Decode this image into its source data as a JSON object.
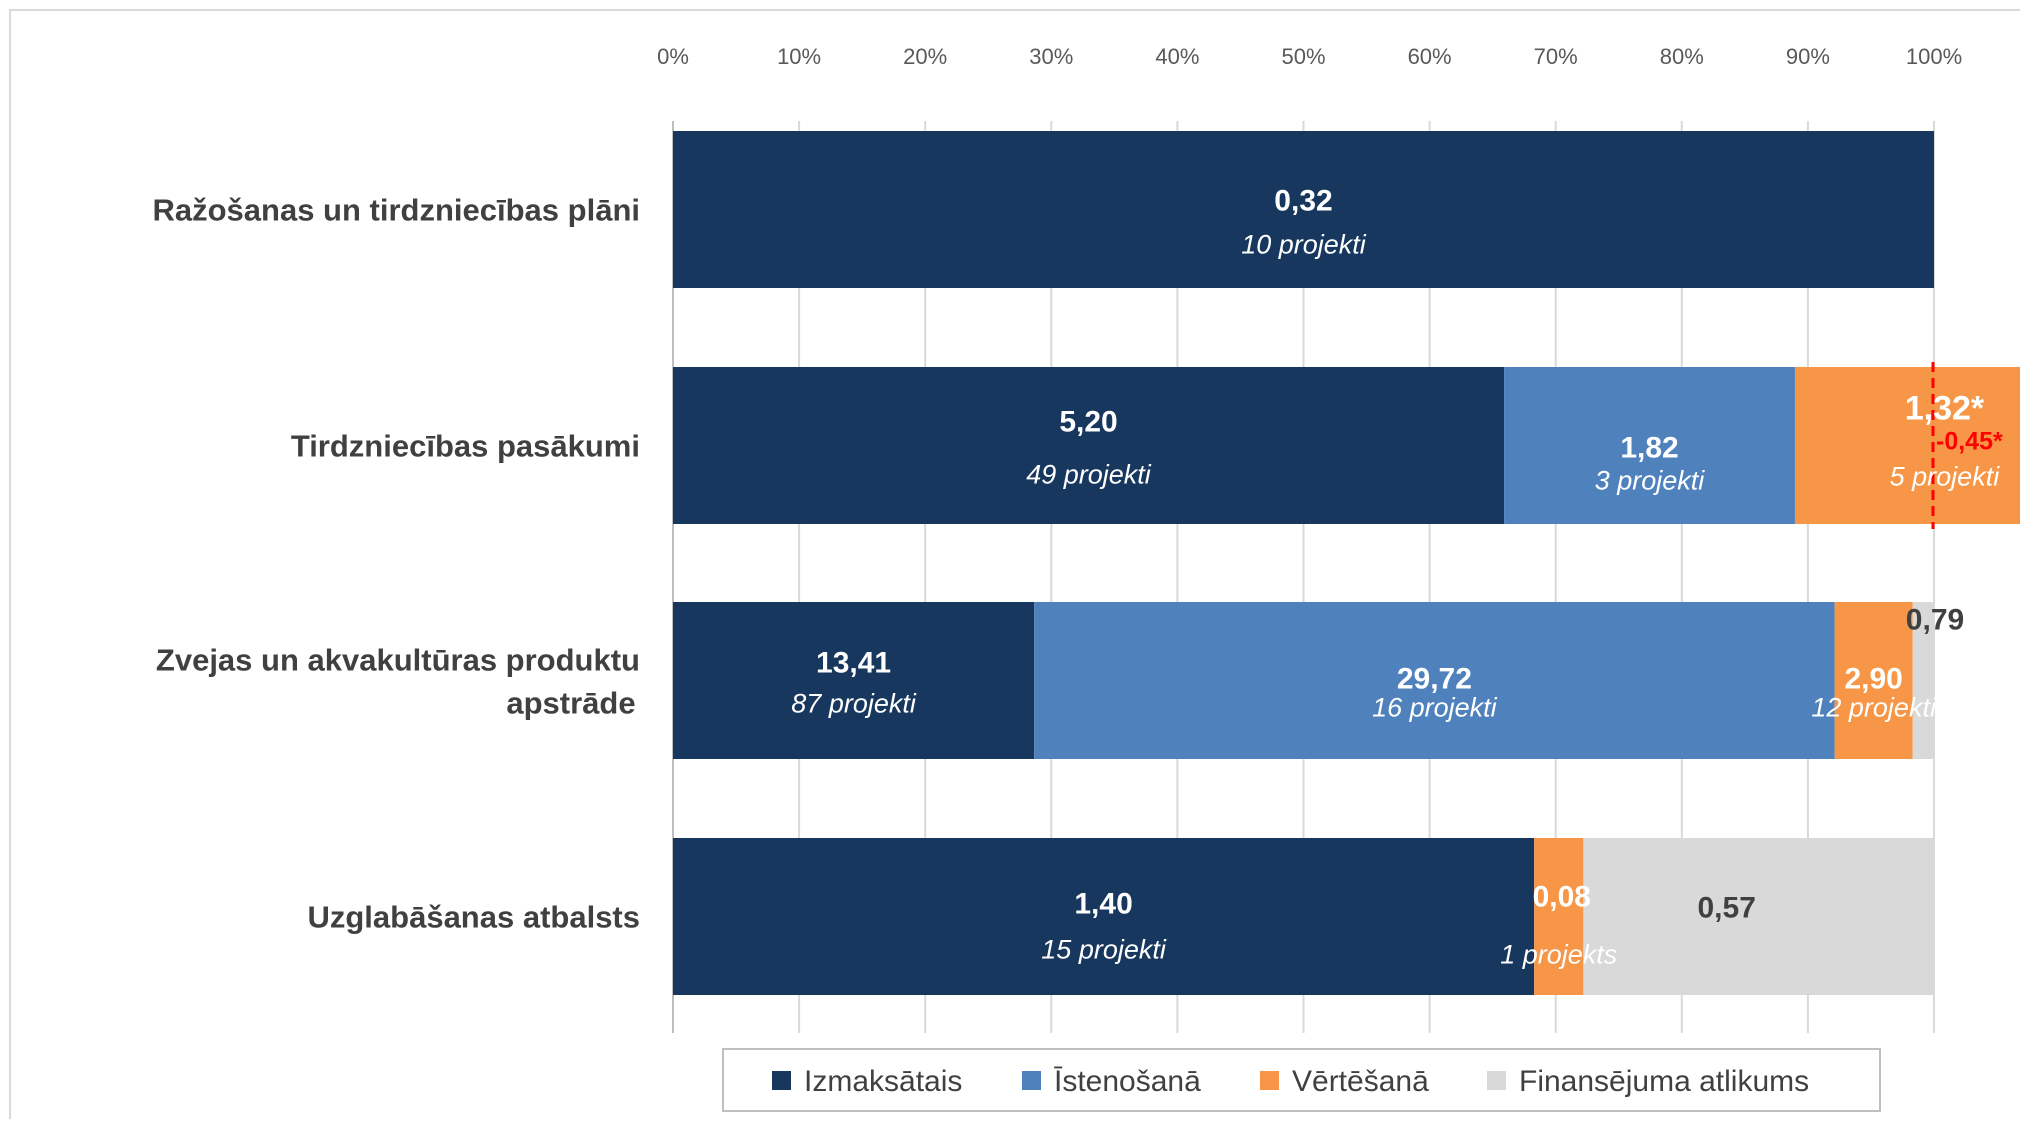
{
  "chart_data": {
    "type": "bar",
    "orientation": "horizontal",
    "stacked": "percent",
    "xlim": [
      0,
      100
    ],
    "x_ticks": [
      "0%",
      "10%",
      "20%",
      "30%",
      "40%",
      "50%",
      "60%",
      "70%",
      "80%",
      "90%",
      "100%"
    ],
    "grid": true,
    "legend_position": "bottom",
    "categories": [
      "Ražošanas un tirdzniecības plāni",
      "Tirdzniecības pasākumi",
      "Zvejas un akvakultūras produktu apstrāde",
      "Uzglabāšanas atbalsts"
    ],
    "series": [
      {
        "name": "Izmaksātais",
        "color": "#17375e",
        "values": [
          0.32,
          5.2,
          13.41,
          1.4
        ],
        "value_labels": [
          "0,32",
          "5,20",
          "13,41",
          "1,40"
        ],
        "project_labels": [
          "10 projekti",
          "49 projekti",
          "87 projekti",
          "15 projekti"
        ]
      },
      {
        "name": "Īstenošanā",
        "color": "#4f81bd",
        "values": [
          0,
          1.82,
          29.72,
          0
        ],
        "value_labels": [
          "",
          "1,82",
          "29,72",
          ""
        ],
        "project_labels": [
          "",
          "3 projekti",
          "16 projekti",
          ""
        ]
      },
      {
        "name": "Vērtēšanā",
        "color": "#f79646",
        "values": [
          0,
          1.32,
          2.9,
          0.08
        ],
        "value_labels": [
          "",
          "1,32*",
          "2,90",
          "0,08"
        ],
        "project_labels": [
          "",
          "5 projekti",
          "12 projekti",
          "1 projekts"
        ]
      },
      {
        "name": "Finansējuma atlikums",
        "color": "#d9d9d9",
        "values": [
          0,
          -0.45,
          0.79,
          0.57
        ],
        "value_labels": [
          "",
          "",
          "0,79",
          "0,57"
        ],
        "project_labels": [
          "",
          "",
          "",
          ""
        ]
      }
    ],
    "annotations": [
      {
        "category": "Tirdzniecības pasākumi",
        "text": "-0,45*",
        "color": "#ff0000",
        "style": "dashed line at 100%"
      }
    ]
  }
}
